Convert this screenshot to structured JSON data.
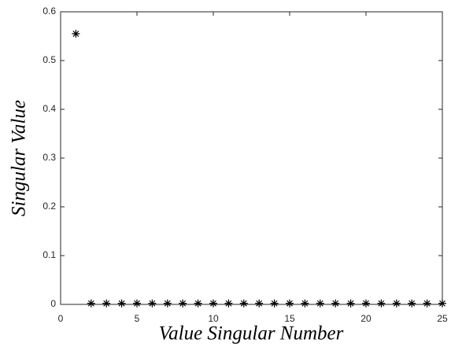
{
  "chart_data": {
    "type": "scatter",
    "xlabel": "Value Singular Number",
    "ylabel": "Singular Value",
    "x": [
      1,
      2,
      3,
      4,
      5,
      6,
      7,
      8,
      9,
      10,
      11,
      12,
      13,
      14,
      15,
      16,
      17,
      18,
      19,
      20,
      21,
      22,
      23,
      24,
      25
    ],
    "values": [
      0.555,
      0.002,
      0.002,
      0.002,
      0.002,
      0.002,
      0.002,
      0.002,
      0.002,
      0.002,
      0.002,
      0.002,
      0.002,
      0.002,
      0.002,
      0.002,
      0.002,
      0.002,
      0.002,
      0.002,
      0.002,
      0.002,
      0.002,
      0.002,
      0.002
    ],
    "color": "#000000",
    "xlim": [
      0,
      25
    ],
    "xticks": [
      0,
      5,
      10,
      15,
      20,
      25
    ],
    "ylim": [
      0,
      0.6
    ],
    "yticks": [
      0,
      0.1,
      0.2,
      0.3,
      0.4,
      0.5,
      0.6
    ],
    "grid": false
  }
}
